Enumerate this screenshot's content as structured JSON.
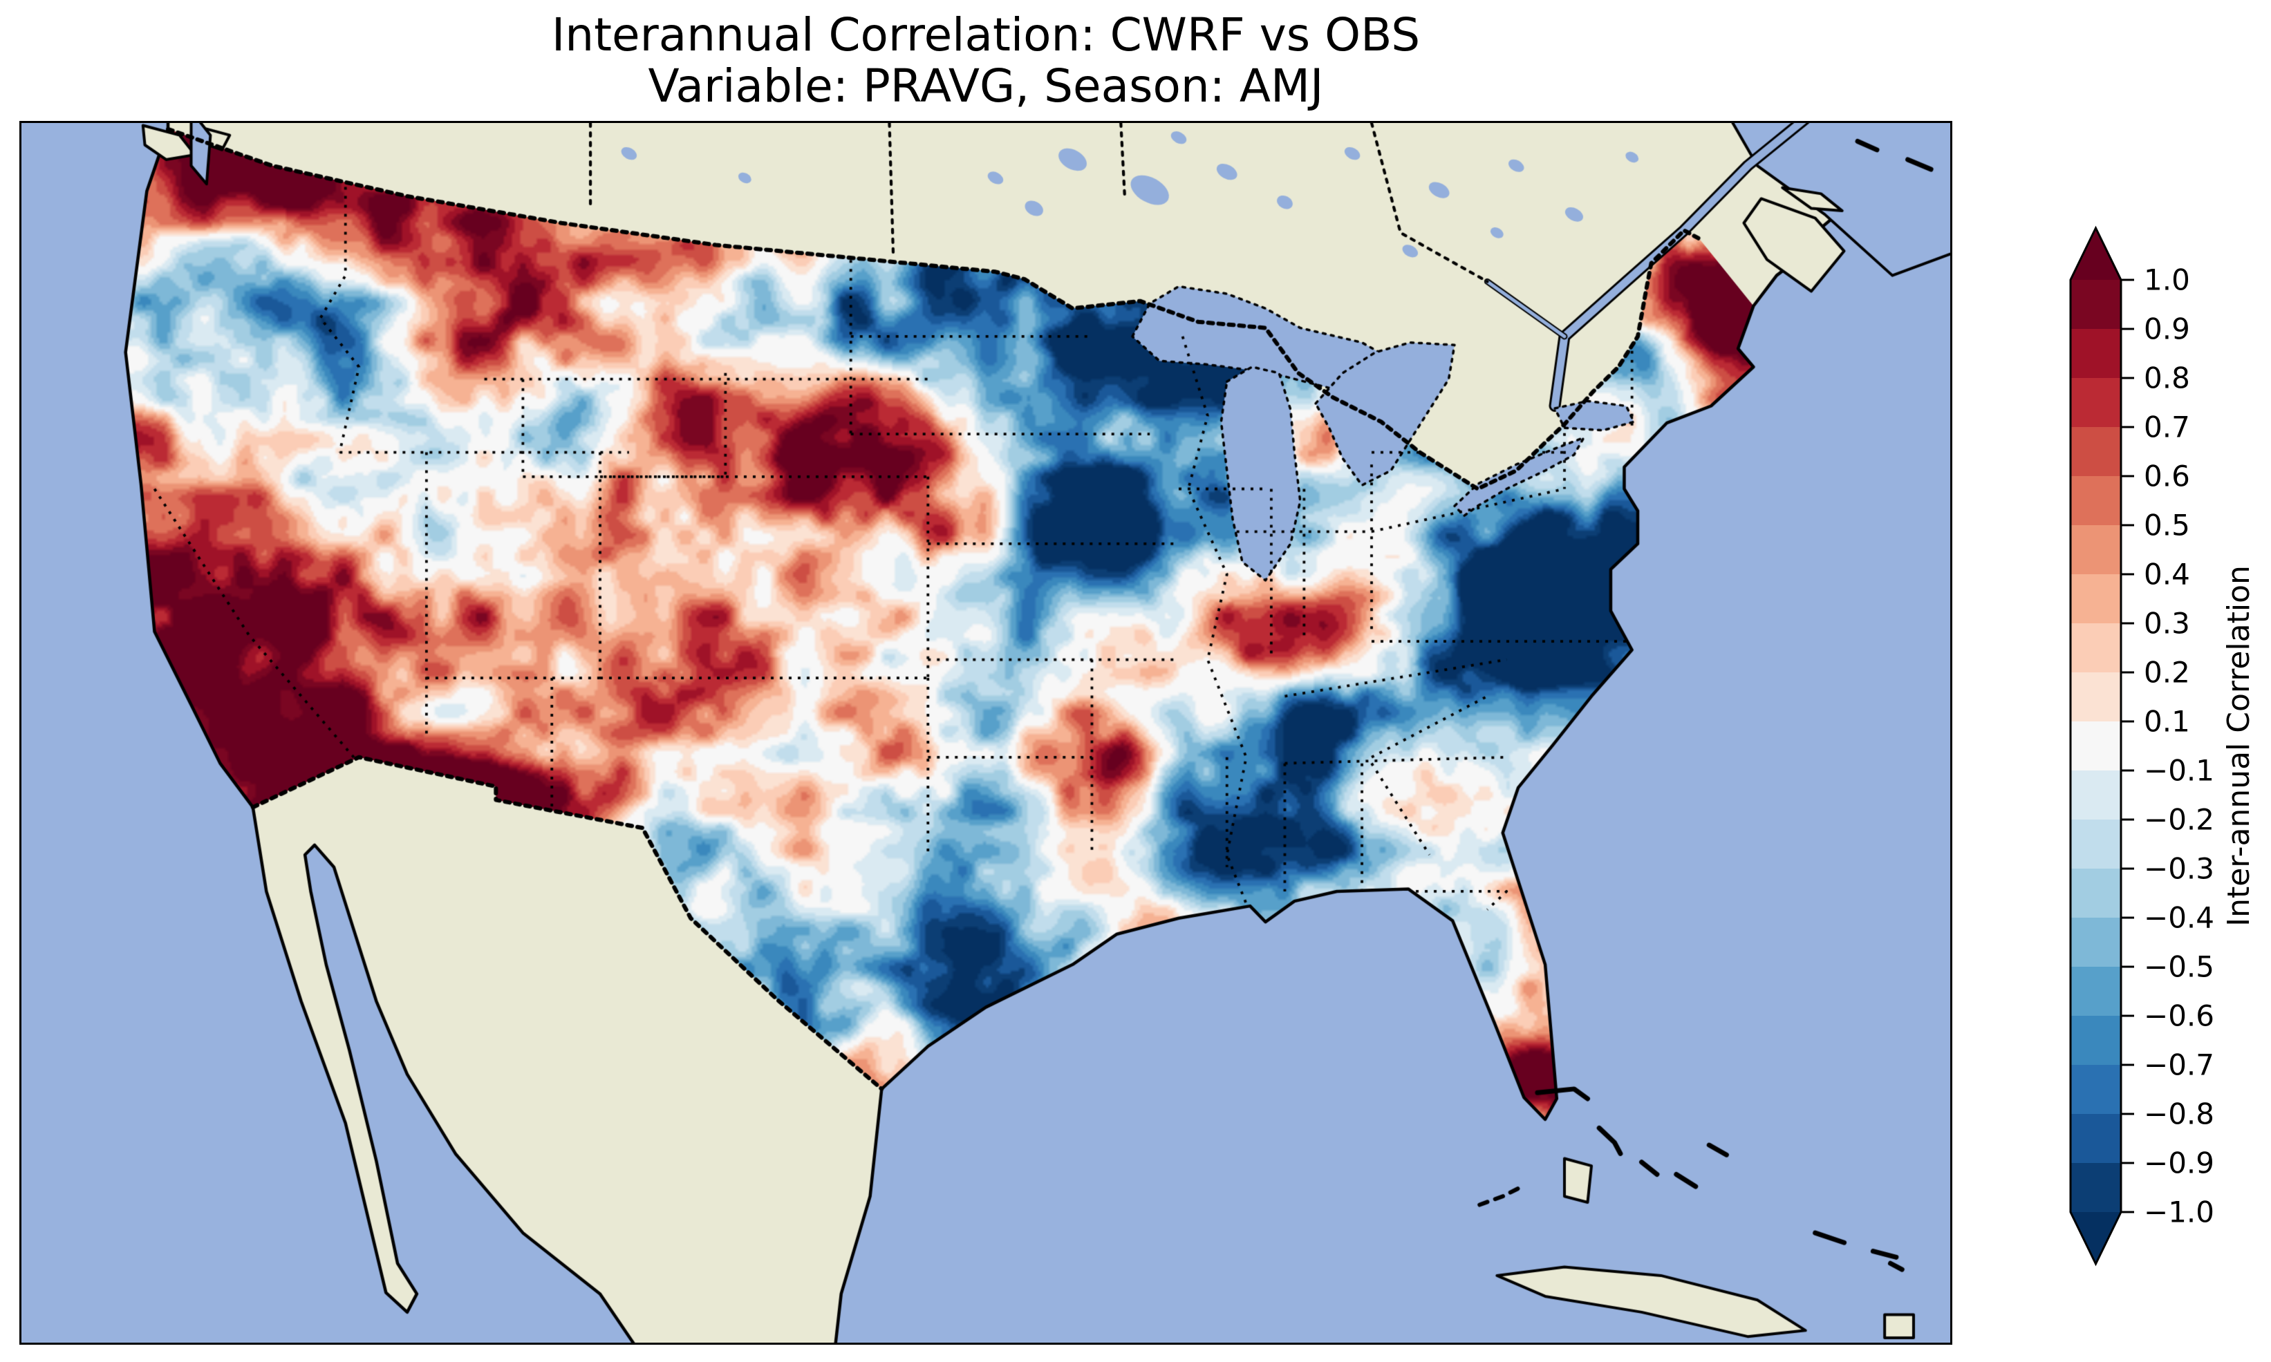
{
  "figure": {
    "title_line1": "Interannual Correlation: CWRF vs OBS",
    "title_line2": "Variable: PRAVG, Season: AMJ",
    "background_color": "#ffffff"
  },
  "map": {
    "ocean_color": "#98b2de",
    "land_color": "#e9e9d4",
    "lake_color": "#94afdc",
    "coastline_color": "#000000",
    "frame_color": "#000000",
    "state_border_style": "dotted",
    "country_border_style": "dotted"
  },
  "colorbar": {
    "label": "Inter-annual Correlation",
    "colormap": "RdBu_r",
    "orientation": "vertical",
    "extend": "both",
    "tick_labels": [
      "1.0",
      "0.9",
      "0.8",
      "0.7",
      "0.6",
      "0.5",
      "0.4",
      "0.3",
      "0.2",
      "0.1",
      "−0.1",
      "−0.2",
      "−0.3",
      "−0.4",
      "−0.5",
      "−0.6",
      "−0.7",
      "−0.8",
      "−0.9",
      "−1.0"
    ],
    "band_colors": [
      "#7a0622",
      "#9f1228",
      "#bb2a34",
      "#cd4e44",
      "#de715a",
      "#ec9475",
      "#f6b293",
      "#fbcdb6",
      "#fbe2d3",
      "#f7f7f7",
      "#daeaf2",
      "#c1ddec",
      "#a2cde2",
      "#7eb8d7",
      "#57a0ca",
      "#3a88bd",
      "#2a71b2",
      "#1a5899",
      "#0c3e74"
    ],
    "extend_high_color": "#67001f",
    "extend_low_color": "#053061"
  },
  "chart_data": {
    "type": "heatmap",
    "subtype": "filled-contour-correlation-map",
    "title": "Interannual Correlation: CWRF vs OBS",
    "subtitle": "Variable: PRAVG, Season: AMJ",
    "model": "CWRF",
    "reference": "OBS",
    "variable": "PRAVG",
    "season": "AMJ",
    "metric": "Interannual correlation coefficient",
    "region": "Continental United States (data masked to CONUS; Canada/Mexico shown as plain land)",
    "value_range": [
      -1.0,
      1.0
    ],
    "contour_levels": [
      -1.0,
      -0.9,
      -0.8,
      -0.7,
      -0.6,
      -0.5,
      -0.4,
      -0.3,
      -0.2,
      -0.1,
      0.1,
      0.2,
      0.3,
      0.4,
      0.5,
      0.6,
      0.7,
      0.8,
      0.9,
      1.0
    ],
    "colormap": "RdBu_r",
    "colorbar_label": "Inter-annual Correlation",
    "legend_position": "right",
    "grid": "off",
    "pattern_description": "Speckled alternating patches of positive (red) and negative (blue) interannual correlation of seasonal-mean precipitation across the CONUS.",
    "notable_features": [
      {
        "region": "southern Arizona / southwestern New Mexico",
        "value": 0.9
      },
      {
        "region": "Maine (northeastern US)",
        "value": 0.85
      },
      {
        "region": "northern Washington / Idaho panhandle",
        "value": 0.65
      },
      {
        "region": "central South Dakota - Nebraska",
        "value": 0.7
      },
      {
        "region": "central California",
        "value": 0.6
      },
      {
        "region": "Missouri / southern Illinois",
        "value": 0.6
      },
      {
        "region": "southern Florida tip",
        "value": 0.7
      },
      {
        "region": "eastern Nebraska / western Iowa",
        "value": -0.7
      },
      {
        "region": "northern Minnesota / Wisconsin belt",
        "value": -0.6
      },
      {
        "region": "Virginia / Carolinas interior",
        "value": -0.6
      },
      {
        "region": "central Texas",
        "value": -0.5
      },
      {
        "region": "interior Oregon",
        "value": -0.5
      },
      {
        "region": "Kentucky / Tennessee",
        "value": -0.5
      }
    ]
  }
}
